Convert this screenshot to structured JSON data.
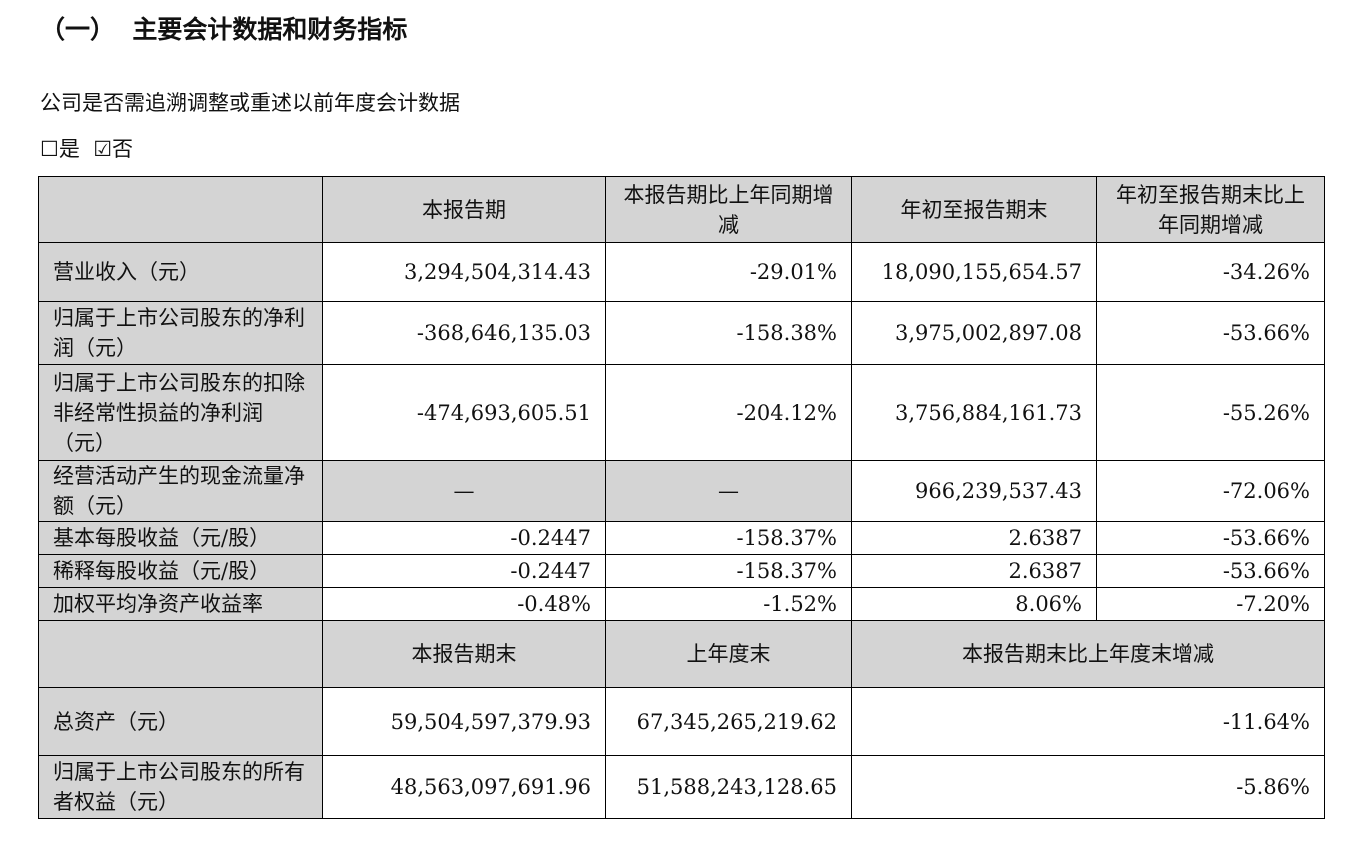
{
  "heading": "（一）  主要会计数据和财务指标",
  "question": "公司是否需追溯调整或重述以前年度会计数据",
  "options": [
    {
      "label": "是",
      "checked": false
    },
    {
      "label": "否",
      "checked": true
    }
  ],
  "table1": {
    "headers": [
      "",
      "本报告期",
      "本报告期比上年同期增减",
      "年初至报告期末",
      "年初至报告期末比上年同期增减"
    ],
    "rows": [
      [
        "营业收入（元）",
        "3,294,504,314.43",
        "-29.01%",
        "18,090,155,654.57",
        "-34.26%"
      ],
      [
        "归属于上市公司股东的净利润（元）",
        "-368,646,135.03",
        "-158.38%",
        "3,975,002,897.08",
        "-53.66%"
      ],
      [
        "归属于上市公司股东的扣除非经常性损益的净利润（元）",
        "-474,693,605.51",
        "-204.12%",
        "3,756,884,161.73",
        "-55.26%"
      ],
      [
        "经营活动产生的现金流量净额（元）",
        "—",
        "—",
        "966,239,537.43",
        "-72.06%"
      ],
      [
        "基本每股收益（元/股）",
        "-0.2447",
        "-158.37%",
        "2.6387",
        "-53.66%"
      ],
      [
        "稀释每股收益（元/股）",
        "-0.2447",
        "-158.37%",
        "2.6387",
        "-53.66%"
      ],
      [
        "加权平均净资产收益率",
        "-0.48%",
        "-1.52%",
        "8.06%",
        "-7.20%"
      ]
    ]
  },
  "table2": {
    "headers": [
      "",
      "本报告期末",
      "上年度末",
      "本报告期末比上年度末增减"
    ],
    "rows": [
      [
        "总资产（元）",
        "59,504,597,379.93",
        "67,345,265,219.62",
        "-11.64%"
      ],
      [
        "归属于上市公司股东的所有者权益（元）",
        "48,563,097,691.96",
        "51,588,243,128.65",
        "-5.86%"
      ]
    ]
  },
  "colors": {
    "shade": "#d4d4d4",
    "border": "#000000"
  }
}
